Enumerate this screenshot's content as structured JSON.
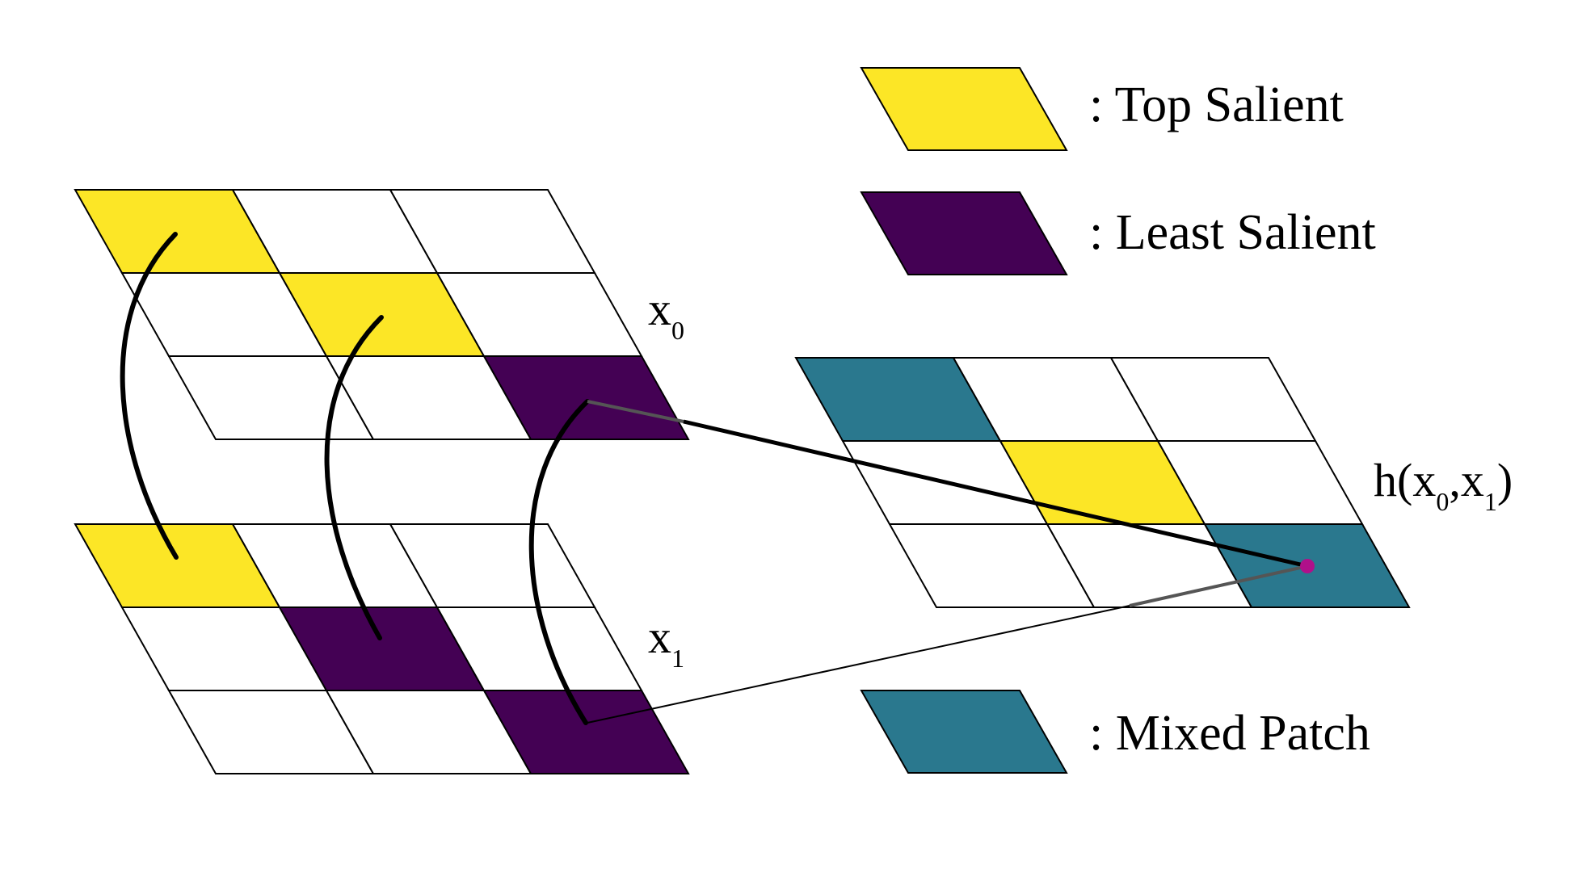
{
  "colors": {
    "top_salient": "#fce626",
    "least_salient": "#440154",
    "mixed_patch": "#2a788e",
    "empty": "#ffffff",
    "point": "#b0108a"
  },
  "legend": [
    {
      "id": "top",
      "label": ": Top Salient",
      "color_key": "top_salient"
    },
    {
      "id": "least",
      "label": ": Least Salient",
      "color_key": "least_salient"
    },
    {
      "id": "mixed",
      "label": ": Mixed Patch",
      "color_key": "mixed_patch"
    }
  ],
  "grids": [
    {
      "id": "x0",
      "label_main": "x",
      "label_sub": "0",
      "cells": [
        [
          "top_salient",
          "empty",
          "empty"
        ],
        [
          "empty",
          "top_salient",
          "empty"
        ],
        [
          "empty",
          "empty",
          "least_salient"
        ]
      ]
    },
    {
      "id": "x1",
      "label_main": "x",
      "label_sub": "1",
      "cells": [
        [
          "top_salient",
          "empty",
          "empty"
        ],
        [
          "empty",
          "least_salient",
          "empty"
        ],
        [
          "empty",
          "empty",
          "least_salient"
        ]
      ]
    },
    {
      "id": "mix",
      "label_prefix": "h(x",
      "label_sub0": "0",
      "label_mid": ",x",
      "label_sub1": "1",
      "label_suffix": ")",
      "cells": [
        [
          "mixed_patch",
          "empty",
          "empty"
        ],
        [
          "empty",
          "top_salient",
          "empty"
        ],
        [
          "empty",
          "empty",
          "mixed_patch"
        ]
      ]
    }
  ]
}
